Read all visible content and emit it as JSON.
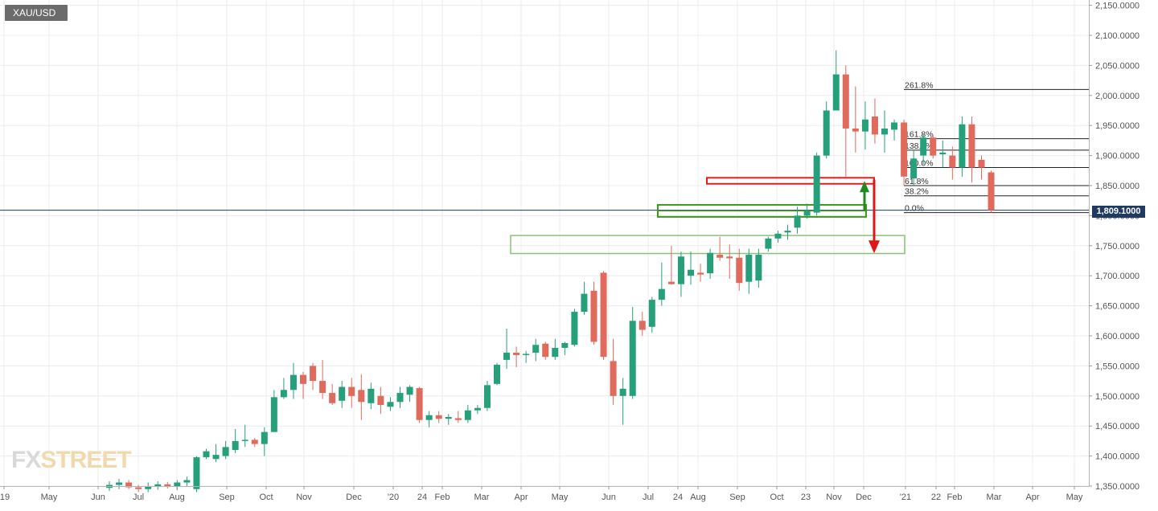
{
  "header": {
    "symbol": "XAU/USD"
  },
  "price_label": "1,809.1000",
  "logo": {
    "fx": "FX",
    "street": "STREET"
  },
  "colors": {
    "up": "#26a07a",
    "down": "#e06a5c",
    "grid": "#ececec",
    "price_line": "#1f3a63",
    "zone_red": "#e02020",
    "zone_green": "#3a9a1a",
    "zone_light_green": "#8bc17a"
  },
  "chart_data": {
    "type": "candlestick",
    "timeframe": "weekly",
    "title": "XAU/USD",
    "ylim": [
      1350,
      2150
    ],
    "y_ticks": [
      1350,
      1400,
      1450,
      1500,
      1550,
      1600,
      1650,
      1700,
      1750,
      1800,
      1850,
      1900,
      1950,
      2000,
      2050,
      2100,
      2150
    ],
    "y_tick_labels": [
      "1,350.0000",
      "1,400.0000",
      "1,450.0000",
      "1,500.0000",
      "1,550.0000",
      "1,600.0000",
      "1,650.0000",
      "1,700.0000",
      "1,750.0000",
      "1,800.0000",
      "1,850.0000",
      "1,900.0000",
      "1,950.0000",
      "2,000.0000",
      "2,050.0000",
      "2,100.0000",
      "2,150.0000"
    ],
    "x_tick_labels": [
      "'19",
      "May",
      "Jun",
      "Jul",
      "Aug",
      "Sep",
      "Oct",
      "Nov",
      "Dec",
      "'20",
      "24",
      "Feb",
      "Mar",
      "Apr",
      "May",
      "Jun",
      "Jul",
      "24",
      "Aug",
      "Sep",
      "Oct",
      "23",
      "Nov",
      "Dec",
      "'21",
      "22",
      "Feb",
      "Mar",
      "Apr",
      "May"
    ],
    "candles": [
      {
        "o": 1347,
        "h": 1358,
        "l": 1342,
        "c": 1352
      },
      {
        "o": 1352,
        "h": 1362,
        "l": 1345,
        "c": 1356
      },
      {
        "o": 1356,
        "h": 1360,
        "l": 1345,
        "c": 1348
      },
      {
        "o": 1348,
        "h": 1352,
        "l": 1340,
        "c": 1345
      },
      {
        "o": 1345,
        "h": 1356,
        "l": 1340,
        "c": 1350
      },
      {
        "o": 1350,
        "h": 1358,
        "l": 1344,
        "c": 1353
      },
      {
        "o": 1353,
        "h": 1357,
        "l": 1346,
        "c": 1349
      },
      {
        "o": 1349,
        "h": 1360,
        "l": 1343,
        "c": 1356
      },
      {
        "o": 1356,
        "h": 1366,
        "l": 1350,
        "c": 1360
      },
      {
        "o": 1345,
        "h": 1400,
        "l": 1340,
        "c": 1398
      },
      {
        "o": 1398,
        "h": 1412,
        "l": 1395,
        "c": 1408
      },
      {
        "o": 1395,
        "h": 1420,
        "l": 1390,
        "c": 1402
      },
      {
        "o": 1400,
        "h": 1425,
        "l": 1395,
        "c": 1415
      },
      {
        "o": 1410,
        "h": 1445,
        "l": 1405,
        "c": 1425
      },
      {
        "o": 1425,
        "h": 1452,
        "l": 1415,
        "c": 1427
      },
      {
        "o": 1427,
        "h": 1430,
        "l": 1415,
        "c": 1420
      },
      {
        "o": 1420,
        "h": 1448,
        "l": 1400,
        "c": 1440
      },
      {
        "o": 1440,
        "h": 1510,
        "l": 1440,
        "c": 1498
      },
      {
        "o": 1498,
        "h": 1530,
        "l": 1495,
        "c": 1510
      },
      {
        "o": 1510,
        "h": 1555,
        "l": 1495,
        "c": 1535
      },
      {
        "o": 1535,
        "h": 1540,
        "l": 1495,
        "c": 1520
      },
      {
        "o": 1550,
        "h": 1555,
        "l": 1510,
        "c": 1525
      },
      {
        "o": 1525,
        "h": 1560,
        "l": 1495,
        "c": 1505
      },
      {
        "o": 1505,
        "h": 1520,
        "l": 1485,
        "c": 1488
      },
      {
        "o": 1492,
        "h": 1525,
        "l": 1480,
        "c": 1515
      },
      {
        "o": 1515,
        "h": 1530,
        "l": 1480,
        "c": 1500
      },
      {
        "o": 1510,
        "h": 1536,
        "l": 1460,
        "c": 1490
      },
      {
        "o": 1488,
        "h": 1522,
        "l": 1478,
        "c": 1512
      },
      {
        "o": 1500,
        "h": 1515,
        "l": 1470,
        "c": 1485
      },
      {
        "o": 1482,
        "h": 1498,
        "l": 1475,
        "c": 1490
      },
      {
        "o": 1490,
        "h": 1515,
        "l": 1480,
        "c": 1505
      },
      {
        "o": 1502,
        "h": 1518,
        "l": 1490,
        "c": 1515
      },
      {
        "o": 1513,
        "h": 1515,
        "l": 1455,
        "c": 1460
      },
      {
        "o": 1460,
        "h": 1475,
        "l": 1448,
        "c": 1468
      },
      {
        "o": 1468,
        "h": 1475,
        "l": 1455,
        "c": 1462
      },
      {
        "o": 1462,
        "h": 1470,
        "l": 1452,
        "c": 1465
      },
      {
        "o": 1463,
        "h": 1475,
        "l": 1455,
        "c": 1460
      },
      {
        "o": 1460,
        "h": 1485,
        "l": 1455,
        "c": 1476
      },
      {
        "o": 1476,
        "h": 1485,
        "l": 1470,
        "c": 1480
      },
      {
        "o": 1480,
        "h": 1525,
        "l": 1475,
        "c": 1518
      },
      {
        "o": 1520,
        "h": 1555,
        "l": 1518,
        "c": 1552
      },
      {
        "o": 1560,
        "h": 1612,
        "l": 1545,
        "c": 1572
      },
      {
        "o": 1572,
        "h": 1582,
        "l": 1548,
        "c": 1568
      },
      {
        "o": 1568,
        "h": 1575,
        "l": 1555,
        "c": 1570
      },
      {
        "o": 1572,
        "h": 1595,
        "l": 1558,
        "c": 1585
      },
      {
        "o": 1587,
        "h": 1590,
        "l": 1560,
        "c": 1565
      },
      {
        "o": 1565,
        "h": 1595,
        "l": 1560,
        "c": 1580
      },
      {
        "o": 1580,
        "h": 1590,
        "l": 1568,
        "c": 1588
      },
      {
        "o": 1585,
        "h": 1645,
        "l": 1582,
        "c": 1640
      },
      {
        "o": 1640,
        "h": 1690,
        "l": 1635,
        "c": 1670
      },
      {
        "o": 1675,
        "h": 1690,
        "l": 1585,
        "c": 1590
      },
      {
        "o": 1705,
        "h": 1708,
        "l": 1560,
        "c": 1565
      },
      {
        "o": 1558,
        "h": 1595,
        "l": 1485,
        "c": 1500
      },
      {
        "o": 1500,
        "h": 1530,
        "l": 1452,
        "c": 1512
      },
      {
        "o": 1500,
        "h": 1648,
        "l": 1495,
        "c": 1625
      },
      {
        "o": 1625,
        "h": 1640,
        "l": 1600,
        "c": 1610
      },
      {
        "o": 1615,
        "h": 1665,
        "l": 1605,
        "c": 1660
      },
      {
        "o": 1660,
        "h": 1722,
        "l": 1650,
        "c": 1678
      },
      {
        "o": 1690,
        "h": 1750,
        "l": 1685,
        "c": 1686
      },
      {
        "o": 1686,
        "h": 1740,
        "l": 1665,
        "c": 1732
      },
      {
        "o": 1700,
        "h": 1740,
        "l": 1685,
        "c": 1710
      },
      {
        "o": 1705,
        "h": 1720,
        "l": 1690,
        "c": 1702
      },
      {
        "o": 1704,
        "h": 1745,
        "l": 1695,
        "c": 1738
      },
      {
        "o": 1735,
        "h": 1765,
        "l": 1725,
        "c": 1730
      },
      {
        "o": 1732,
        "h": 1752,
        "l": 1695,
        "c": 1729
      },
      {
        "o": 1730,
        "h": 1745,
        "l": 1675,
        "c": 1688
      },
      {
        "o": 1690,
        "h": 1745,
        "l": 1670,
        "c": 1735
      },
      {
        "o": 1692,
        "h": 1745,
        "l": 1680,
        "c": 1735
      },
      {
        "o": 1745,
        "h": 1765,
        "l": 1740,
        "c": 1762
      },
      {
        "o": 1762,
        "h": 1775,
        "l": 1755,
        "c": 1770
      },
      {
        "o": 1772,
        "h": 1785,
        "l": 1760,
        "c": 1775
      },
      {
        "o": 1780,
        "h": 1815,
        "l": 1770,
        "c": 1800
      },
      {
        "o": 1800,
        "h": 1820,
        "l": 1795,
        "c": 1808
      },
      {
        "o": 1805,
        "h": 1905,
        "l": 1800,
        "c": 1900
      },
      {
        "o": 1900,
        "h": 1990,
        "l": 1895,
        "c": 1975
      },
      {
        "o": 1975,
        "h": 2075,
        "l": 1975,
        "c": 2035
      },
      {
        "o": 2035,
        "h": 2050,
        "l": 1865,
        "c": 1945
      },
      {
        "o": 1945,
        "h": 2015,
        "l": 1905,
        "c": 1940
      },
      {
        "o": 1940,
        "h": 1990,
        "l": 1910,
        "c": 1960
      },
      {
        "o": 1965,
        "h": 1995,
        "l": 1920,
        "c": 1935
      },
      {
        "o": 1935,
        "h": 1975,
        "l": 1905,
        "c": 1945
      },
      {
        "o": 1943,
        "h": 1960,
        "l": 1925,
        "c": 1955
      },
      {
        "o": 1955,
        "h": 1960,
        "l": 1850,
        "c": 1865
      },
      {
        "o": 1862,
        "h": 1910,
        "l": 1850,
        "c": 1895
      },
      {
        "o": 1900,
        "h": 1935,
        "l": 1885,
        "c": 1930
      },
      {
        "o": 1930,
        "h": 1935,
        "l": 1895,
        "c": 1900
      },
      {
        "o": 1902,
        "h": 1925,
        "l": 1880,
        "c": 1905
      },
      {
        "o": 1900,
        "h": 1915,
        "l": 1860,
        "c": 1880
      },
      {
        "o": 1880,
        "h": 1965,
        "l": 1865,
        "c": 1952
      },
      {
        "o": 1952,
        "h": 1965,
        "l": 1855,
        "c": 1880
      },
      {
        "o": 1893,
        "h": 1900,
        "l": 1860,
        "c": 1880
      },
      {
        "o": 1872,
        "h": 1875,
        "l": 1805,
        "c": 1809
      }
    ],
    "fibonacci": [
      {
        "label": "261.8%",
        "value": 2010
      },
      {
        "label": "161.8%",
        "value": 1928
      },
      {
        "label": "138.2%",
        "value": 1909
      },
      {
        "label": "100.0%",
        "value": 1880
      },
      {
        "label": "61.8%",
        "value": 1850
      },
      {
        "label": "38.2%",
        "value": 1833
      },
      {
        "label": "0.0%",
        "value": 1805
      }
    ],
    "current_price": 1809.1,
    "zones": [
      {
        "name": "resistance-zone",
        "color": "red",
        "low": 1853,
        "high": 1863
      },
      {
        "name": "inner-support-zone",
        "color": "green",
        "low": 1798,
        "high": 1818
      },
      {
        "name": "lower-support-zone",
        "color": "light-green",
        "low": 1737,
        "high": 1767
      }
    ],
    "arrows": [
      {
        "direction": "up",
        "color": "green"
      },
      {
        "direction": "down",
        "color": "red"
      }
    ],
    "grid": true
  }
}
